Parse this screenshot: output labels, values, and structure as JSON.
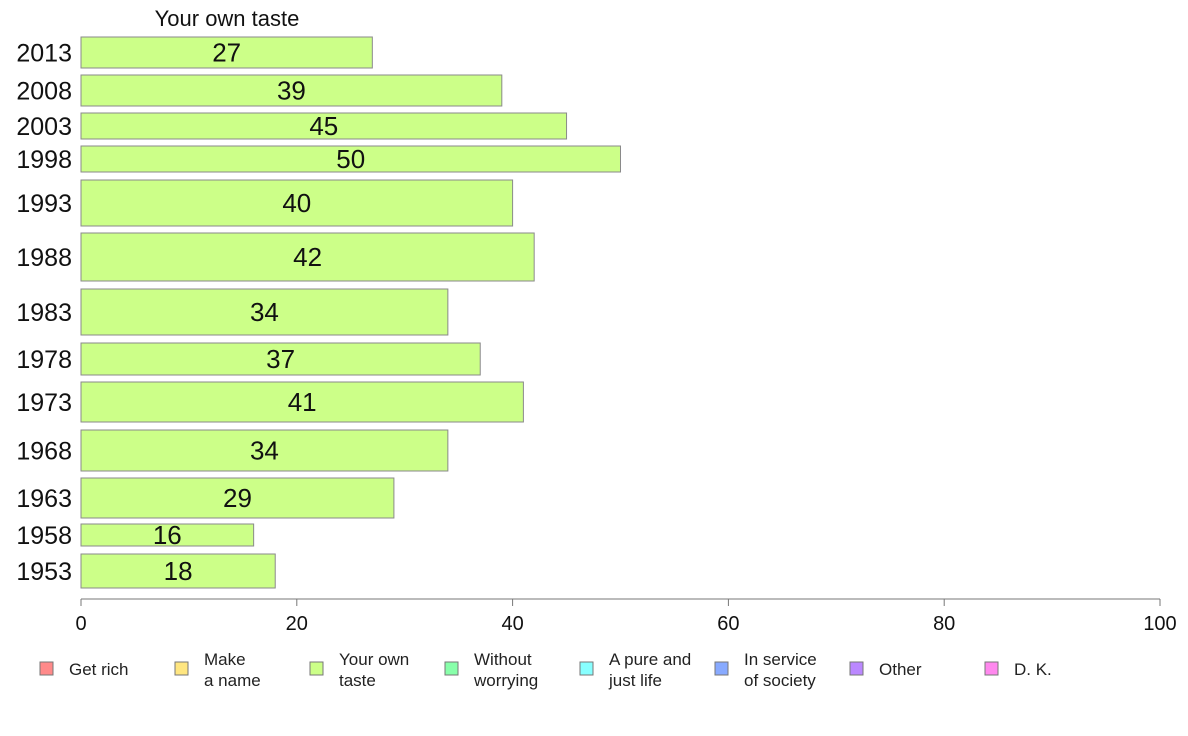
{
  "chart_data": {
    "type": "bar",
    "orientation": "horizontal",
    "title": "Your own taste",
    "categories": [
      "2013",
      "2008",
      "2003",
      "1998",
      "1993",
      "1988",
      "1983",
      "1978",
      "1973",
      "1968",
      "1963",
      "1958",
      "1953"
    ],
    "series": [
      {
        "name": "Your own taste",
        "values": [
          27,
          39,
          45,
          50,
          40,
          42,
          34,
          37,
          41,
          34,
          29,
          16,
          18
        ]
      }
    ],
    "bar_labels": [
      "27",
      "39",
      "45",
      "50",
      "40",
      "42",
      "34",
      "37",
      "41",
      "34",
      "29",
      "16",
      "18"
    ],
    "xlim": [
      0,
      100
    ],
    "xticks": [
      0,
      20,
      40,
      60,
      80,
      100
    ],
    "grid": false,
    "bar_color": "#ccff88",
    "legend": {
      "placement": "bottom",
      "items": [
        {
          "lines": [
            "Get rich"
          ],
          "color": "#ff8a8a"
        },
        {
          "lines": [
            "Make",
            "a name"
          ],
          "color": "#ffe680"
        },
        {
          "lines": [
            "Your own",
            "taste"
          ],
          "color": "#ccff88"
        },
        {
          "lines": [
            "Without",
            "worrying"
          ],
          "color": "#88ffaa"
        },
        {
          "lines": [
            "A pure and",
            "just life"
          ],
          "color": "#88ffff"
        },
        {
          "lines": [
            "In service",
            "of society"
          ],
          "color": "#88aaff"
        },
        {
          "lines": [
            "Other"
          ],
          "color": "#bb88ff"
        },
        {
          "lines": [
            "D. K."
          ],
          "color": "#ff88ee"
        }
      ]
    }
  }
}
